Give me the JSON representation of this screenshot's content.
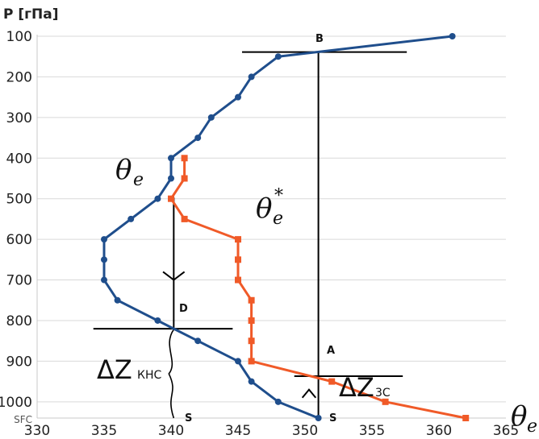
{
  "chart_data": {
    "type": "line",
    "ylabel": "P [гПа]",
    "x_ticks": [
      "330",
      "335",
      "340",
      "345",
      "350",
      "355",
      "360",
      "365"
    ],
    "y_ticks": [
      "100",
      "200",
      "300",
      "400",
      "500",
      "600",
      "700",
      "800",
      "900",
      "1000",
      "SFC"
    ],
    "xlim": [
      330,
      365
    ],
    "ylim": [
      100,
      1040
    ],
    "grid": "horizontal",
    "series": [
      {
        "name": "θe",
        "color": "#1f4e8c",
        "marker": "circle",
        "points": [
          [
            361,
            100
          ],
          [
            348,
            150
          ],
          [
            346,
            200
          ],
          [
            345,
            250
          ],
          [
            343,
            300
          ],
          [
            342,
            350
          ],
          [
            340,
            400
          ],
          [
            340,
            450
          ],
          [
            339,
            500
          ],
          [
            337,
            550
          ],
          [
            335,
            600
          ],
          [
            335,
            650
          ],
          [
            335,
            700
          ],
          [
            336,
            750
          ],
          [
            339,
            800
          ],
          [
            342,
            850
          ],
          [
            345,
            900
          ],
          [
            346,
            950
          ],
          [
            348,
            1000
          ],
          [
            351,
            1040
          ]
        ]
      },
      {
        "name": "θe*",
        "color": "#f05a28",
        "marker": "square",
        "points": [
          [
            341,
            400
          ],
          [
            341,
            450
          ],
          [
            340,
            500
          ],
          [
            341,
            550
          ],
          [
            345,
            600
          ],
          [
            345,
            650
          ],
          [
            345,
            700
          ],
          [
            346,
            750
          ],
          [
            346,
            800
          ],
          [
            346,
            850
          ],
          [
            346,
            900
          ],
          [
            352,
            950
          ],
          [
            356,
            1000
          ],
          [
            362,
            1040
          ]
        ]
      }
    ],
    "annotations": {
      "point_labels": [
        "B",
        "A",
        "D",
        "S",
        "S"
      ],
      "theta_e": "θ",
      "theta_e_sub": "e",
      "theta_e_star": "θ",
      "theta_e_star_sub": "e",
      "theta_e_star_sup": "*",
      "x_axis_theta": "θ",
      "x_axis_theta_sub": "e",
      "dz_knc_main": "ΔZ",
      "dz_knc_sub": "КНС",
      "dz_3c_main": "ΔZ",
      "dz_3c_sub": "3С"
    }
  }
}
